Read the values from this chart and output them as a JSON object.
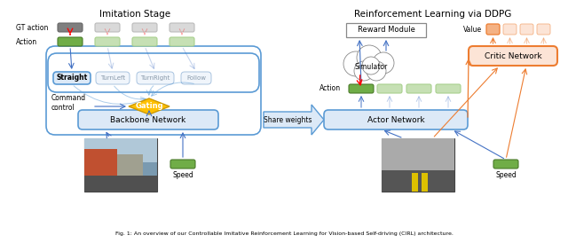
{
  "title_left": "Imitation Stage",
  "title_right": "Reinforcement Learning via DDPG",
  "caption": "Fig. 1: An overview of our Controllable Imitative Reinforcement Learning for Vision-based Self-driving (CIRL) architecture.",
  "bg_color": "#ffffff",
  "commands": [
    "Straight",
    "TurnLeft",
    "TurnRight",
    "Follow"
  ],
  "blue_box_color": "#5b9bd5",
  "blue_box_fill": "#dce9f7",
  "green_color": "#70ad47",
  "green_light": "#c6e0b4",
  "gray_color": "#7f7f7f",
  "gray_light": "#d9d9d9",
  "orange_network_fill": "#fce4d6",
  "orange_network_border": "#ed7d31",
  "yellow_gold": "#ffc000",
  "red_color": "#ff0000",
  "blue_arrow": "#4472c4"
}
